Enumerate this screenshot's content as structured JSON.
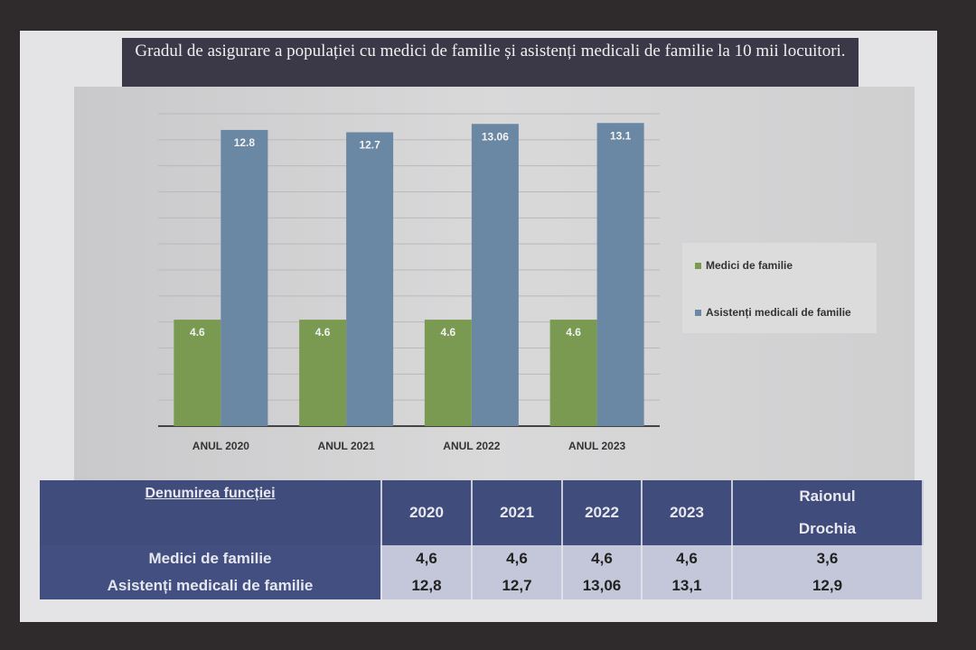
{
  "colors": {
    "medici": "#7a9a52",
    "asistenti": "#6a87a3",
    "title_bg": "#3b3947",
    "table_header": "#404d7c"
  },
  "chart_data": {
    "type": "bar",
    "title": "Gradul de asigurare a populației cu medici de familie și asistenți medicali de familie la 10 mii locuitori.",
    "categories": [
      "ANUL 2020",
      "ANUL 2021",
      "ANUL 2022",
      "ANUL 2023"
    ],
    "series": [
      {
        "name": "Medici de familie",
        "values": [
          4.6,
          4.6,
          4.6,
          4.6
        ],
        "labels": [
          "4.6",
          "4.6",
          "4.6",
          "4.6"
        ]
      },
      {
        "name": "Asistenți medicali de familie",
        "values": [
          12.8,
          12.7,
          13.06,
          13.1
        ],
        "labels": [
          "12.8",
          "12.7",
          "13.06",
          "13.1"
        ]
      }
    ],
    "ylim": [
      0,
      13.5
    ],
    "grid": true,
    "legend": "right"
  },
  "table": {
    "headers": [
      "Denumirea funcției",
      "2020",
      "2021",
      "2022",
      "2023",
      "Raionul",
      "Drochia"
    ],
    "rows": [
      {
        "name": "Medici de familie",
        "values": [
          "4,6",
          "4,6",
          "4,6",
          "4,6",
          "3,6"
        ]
      },
      {
        "name": "Asistenți medicali de familie",
        "values": [
          "12,8",
          "12,7",
          "13,06",
          "13,1",
          "12,9"
        ]
      }
    ]
  }
}
